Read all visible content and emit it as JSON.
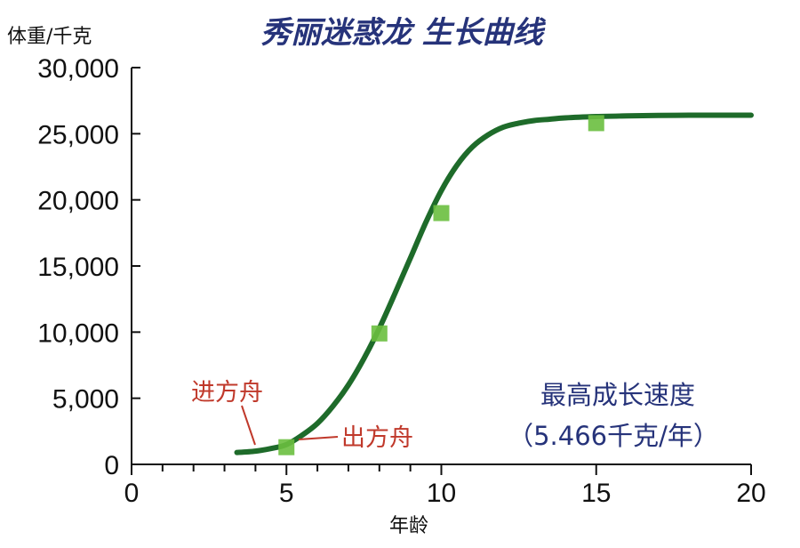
{
  "chart_data": {
    "type": "line",
    "title": "秀丽迷惑龙 生长曲线",
    "xlabel": "年龄",
    "ylabel": "体重/千克",
    "xlim": [
      0,
      20
    ],
    "ylim": [
      0,
      30000
    ],
    "x_ticks": [
      0,
      5,
      10,
      15,
      20
    ],
    "x_minor_ticks": [
      1,
      2,
      3,
      4,
      6,
      7,
      8,
      9
    ],
    "y_ticks": [
      0,
      5000,
      10000,
      15000,
      20000,
      25000,
      30000
    ],
    "y_tick_labels": [
      "0",
      "5,000",
      "10,000",
      "15,000",
      "20,000",
      "25,000",
      "30,000"
    ],
    "x_tick_labels": [
      "0",
      "5",
      "10",
      "15",
      "20"
    ],
    "series": [
      {
        "kind": "curve",
        "color": "#1e6b2a",
        "x": [
          3.4,
          4.0,
          4.5,
          5.0,
          5.5,
          6.0,
          6.5,
          7.0,
          7.5,
          8.0,
          8.5,
          9.0,
          9.5,
          10.0,
          10.5,
          11.0,
          11.5,
          12.0,
          12.5,
          13.0,
          13.5,
          14.0,
          15.0,
          16.0,
          17.0,
          18.0,
          19.0,
          20.0
        ],
        "y": [
          900,
          1000,
          1200,
          1500,
          2200,
          3100,
          4400,
          6000,
          8000,
          10300,
          12900,
          15600,
          18300,
          20700,
          22600,
          24000,
          24900,
          25500,
          25800,
          26000,
          26100,
          26200,
          26300,
          26350,
          26380,
          26400,
          26400,
          26400
        ]
      },
      {
        "kind": "points",
        "color": "#6abf3f",
        "x": [
          5,
          8,
          10,
          15
        ],
        "y": [
          1300,
          9900,
          19000,
          25800
        ]
      }
    ],
    "annotations": [
      {
        "text": "进方舟",
        "x": 4.0,
        "y": 1100,
        "color": "#c0392b"
      },
      {
        "text": "出方舟",
        "x": 5.0,
        "y": 1500,
        "color": "#c0392b"
      },
      {
        "line1": "最高成长速度",
        "line2": "（5.466千克/年）",
        "color": "#26337a"
      }
    ]
  }
}
